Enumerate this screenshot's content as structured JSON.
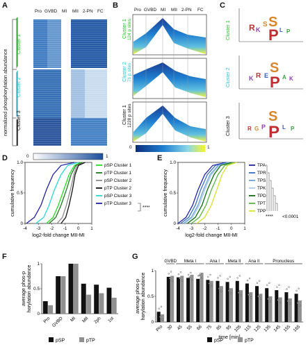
{
  "panels": {
    "a": "A",
    "b": "B",
    "c": "C",
    "d": "D",
    "e": "E",
    "f": "F",
    "g": "G"
  },
  "stages": [
    "Pro",
    "GVBD",
    "MI",
    "MII",
    "2-PN",
    "FC"
  ],
  "clusters": {
    "c1": "Cluster 1",
    "c2": "Cluster 2",
    "c3": "Cluster 3",
    "c1_sites": "124 p sites",
    "c2_sites": "76 p sites",
    "c3_sites": "1228 p sites"
  },
  "panel_a": {
    "ylabel": "normalized phosphorylation abundance",
    "scale_min": "0",
    "scale_max": "1"
  },
  "panel_b": {
    "scale_min": "0",
    "scale_max": "1"
  },
  "colors": {
    "pSP1": "#22e022",
    "pTP1": "#1e7b1e",
    "pSP2": "#8a8a8a",
    "pTP2": "#111111",
    "pSP3": "#2ad7d7",
    "pTP3": "#2222a6",
    "TPA": "#2222a6",
    "TPR": "#3570c0",
    "TPS": "#6aa0d6",
    "TPK": "#a9c9e8",
    "TPD": "#0c6b0c",
    "TPT": "#58b340",
    "TPP": "#d8e22a",
    "bar_black": "#111111",
    "bar_grey": "#909090",
    "cluster1_text": "#22c322",
    "cluster2_text": "#27c6d6",
    "cluster3_text": "#111111"
  },
  "chart_data": [
    {
      "id": "D",
      "type": "line",
      "title": "",
      "xlabel": "log2-fold change MII-MI",
      "ylabel": "cumulative frequency",
      "xlim": [
        -4,
        1
      ],
      "ylim": [
        0,
        1
      ],
      "xticks": [
        "-4",
        "-3",
        "-2",
        "-1",
        "0",
        "1"
      ],
      "yticks": [
        "0",
        "0.5",
        "1.0"
      ],
      "legend_position": "right",
      "significance": "****",
      "series": [
        {
          "name": "pSP Cluster 1",
          "color_key": "pSP1",
          "points": [
            [
              -2.4,
              0
            ],
            [
              -1.9,
              0.1
            ],
            [
              -1.5,
              0.3
            ],
            [
              -1.1,
              0.55
            ],
            [
              -0.7,
              0.8
            ],
            [
              -0.3,
              0.95
            ],
            [
              0.2,
              1
            ]
          ]
        },
        {
          "name": "pTP Cluster 1",
          "color_key": "pTP1",
          "points": [
            [
              -2.2,
              0
            ],
            [
              -1.7,
              0.1
            ],
            [
              -1.3,
              0.3
            ],
            [
              -0.9,
              0.55
            ],
            [
              -0.55,
              0.8
            ],
            [
              -0.2,
              0.95
            ],
            [
              0.3,
              1
            ]
          ]
        },
        {
          "name": "pSP Cluster 2",
          "color_key": "pSP2",
          "points": [
            [
              -1.6,
              0
            ],
            [
              -1.2,
              0.1
            ],
            [
              -0.9,
              0.3
            ],
            [
              -0.6,
              0.55
            ],
            [
              -0.35,
              0.8
            ],
            [
              -0.1,
              0.95
            ],
            [
              0.4,
              1
            ]
          ]
        },
        {
          "name": "pTP Cluster 2",
          "color_key": "pTP2",
          "points": [
            [
              -1.3,
              0
            ],
            [
              -0.95,
              0.1
            ],
            [
              -0.7,
              0.3
            ],
            [
              -0.45,
              0.55
            ],
            [
              -0.25,
              0.8
            ],
            [
              0.0,
              0.95
            ],
            [
              0.5,
              1
            ]
          ]
        },
        {
          "name": "pSP Cluster 3",
          "color_key": "pSP3",
          "points": [
            [
              -3.2,
              0
            ],
            [
              -2.6,
              0.1
            ],
            [
              -2.2,
              0.3
            ],
            [
              -1.8,
              0.55
            ],
            [
              -1.3,
              0.8
            ],
            [
              -0.8,
              0.95
            ],
            [
              0.0,
              1
            ]
          ]
        },
        {
          "name": "pTP Cluster 3",
          "color_key": "pTP3",
          "points": [
            [
              -3.9,
              0
            ],
            [
              -3.3,
              0.1
            ],
            [
              -2.8,
              0.3
            ],
            [
              -2.4,
              0.55
            ],
            [
              -1.9,
              0.8
            ],
            [
              -1.3,
              0.95
            ],
            [
              -0.3,
              1
            ]
          ]
        }
      ]
    },
    {
      "id": "E",
      "type": "line",
      "title": "",
      "xlabel": "log2-fold change MII-MI",
      "ylabel": "cumulative frequency",
      "xlim": [
        -4,
        1
      ],
      "ylim": [
        0,
        1
      ],
      "xticks": [
        "-4",
        "-3",
        "-2",
        "-1",
        "0",
        "1"
      ],
      "yticks": [
        "0",
        "0.5",
        "1.0"
      ],
      "legend_position": "right",
      "significance": "****",
      "pvalue": "<0.0001",
      "series": [
        {
          "name": "TPA",
          "color_key": "TPA",
          "points": [
            [
              -4,
              0
            ],
            [
              -3.4,
              0.1
            ],
            [
              -2.9,
              0.3
            ],
            [
              -2.5,
              0.55
            ],
            [
              -2.0,
              0.8
            ],
            [
              -1.4,
              0.95
            ],
            [
              -0.4,
              1
            ]
          ]
        },
        {
          "name": "TPR",
          "color_key": "TPR",
          "points": [
            [
              -3.8,
              0
            ],
            [
              -3.2,
              0.1
            ],
            [
              -2.7,
              0.3
            ],
            [
              -2.3,
              0.55
            ],
            [
              -1.8,
              0.8
            ],
            [
              -1.2,
              0.95
            ],
            [
              -0.3,
              1
            ]
          ]
        },
        {
          "name": "TPS",
          "color_key": "TPS",
          "points": [
            [
              -3.6,
              0
            ],
            [
              -3.0,
              0.1
            ],
            [
              -2.5,
              0.3
            ],
            [
              -2.1,
              0.55
            ],
            [
              -1.6,
              0.8
            ],
            [
              -1.0,
              0.95
            ],
            [
              -0.2,
              1
            ]
          ]
        },
        {
          "name": "TPK",
          "color_key": "TPK",
          "points": [
            [
              -3.5,
              0
            ],
            [
              -2.9,
              0.1
            ],
            [
              -2.4,
              0.3
            ],
            [
              -2.0,
              0.55
            ],
            [
              -1.5,
              0.8
            ],
            [
              -0.9,
              0.95
            ],
            [
              -0.1,
              1
            ]
          ]
        },
        {
          "name": "TPD",
          "color_key": "TPD",
          "points": [
            [
              -3.3,
              0
            ],
            [
              -2.7,
              0.1
            ],
            [
              -2.2,
              0.3
            ],
            [
              -1.8,
              0.55
            ],
            [
              -1.3,
              0.8
            ],
            [
              -0.8,
              0.95
            ],
            [
              0.0,
              1
            ]
          ]
        },
        {
          "name": "TPT",
          "color_key": "TPT",
          "points": [
            [
              -3.0,
              0
            ],
            [
              -2.4,
              0.1
            ],
            [
              -1.9,
              0.3
            ],
            [
              -1.5,
              0.55
            ],
            [
              -1.0,
              0.8
            ],
            [
              -0.5,
              0.95
            ],
            [
              0.2,
              1
            ]
          ]
        },
        {
          "name": "TPP",
          "color_key": "TPP",
          "points": [
            [
              -2.6,
              0
            ],
            [
              -2.0,
              0.1
            ],
            [
              -1.5,
              0.3
            ],
            [
              -1.1,
              0.55
            ],
            [
              -0.7,
              0.8
            ],
            [
              -0.3,
              0.95
            ],
            [
              0.4,
              1
            ]
          ]
        }
      ]
    },
    {
      "id": "F",
      "type": "bar",
      "title": "",
      "xlabel": "",
      "ylabel": "average phos-phorylation abundance",
      "ylim": [
        0,
        1
      ],
      "yticks": [
        "0",
        "0.5",
        "1"
      ],
      "categories": [
        "Pro",
        "GVBD",
        "MI",
        "MII",
        "2ph",
        "1st"
      ],
      "series": [
        {
          "name": "pSP",
          "color_key": "bar_black",
          "values": [
            0.25,
            0.75,
            1.0,
            0.6,
            0.58,
            0.52
          ]
        },
        {
          "name": "pTP",
          "color_key": "bar_grey",
          "values": [
            0.17,
            0.75,
            1.0,
            0.38,
            0.41,
            0.32
          ]
        }
      ]
    },
    {
      "id": "G",
      "type": "bar",
      "title": "",
      "xlabel": "time [min]",
      "ylabel": "average phos-phorylation abundance",
      "ylim": [
        0,
        1
      ],
      "yticks": [
        "0",
        "0.5",
        "1"
      ],
      "categories": [
        "Pro",
        "30",
        "45",
        "55",
        "66",
        "75",
        "85",
        "95",
        "105",
        "115",
        "125",
        "135",
        "145",
        "155",
        "165"
      ],
      "phases": [
        {
          "label": "GVBD",
          "from": 1,
          "to": 1
        },
        {
          "label": "Meta I",
          "from": 2,
          "to": 4
        },
        {
          "label": "Ana I",
          "from": 5,
          "to": 6
        },
        {
          "label": "Meta II",
          "from": 7,
          "to": 8
        },
        {
          "label": "Ana II",
          "from": 9,
          "to": 10
        },
        {
          "label": "Pronucleus",
          "from": 11,
          "to": 14
        }
      ],
      "series": [
        {
          "name": "pSP",
          "color_key": "bar_black",
          "values": [
            0.2,
            0.88,
            0.87,
            0.86,
            0.84,
            0.82,
            0.8,
            0.78,
            0.8,
            0.75,
            0.7,
            0.66,
            0.62,
            0.58,
            0.55
          ]
        },
        {
          "name": "pTP",
          "color_key": "bar_grey",
          "values": [
            0.15,
            0.9,
            0.9,
            0.92,
            0.96,
            0.8,
            0.7,
            0.66,
            0.62,
            0.58,
            0.55,
            0.5,
            0.48,
            0.46,
            0.42
          ]
        }
      ]
    }
  ]
}
